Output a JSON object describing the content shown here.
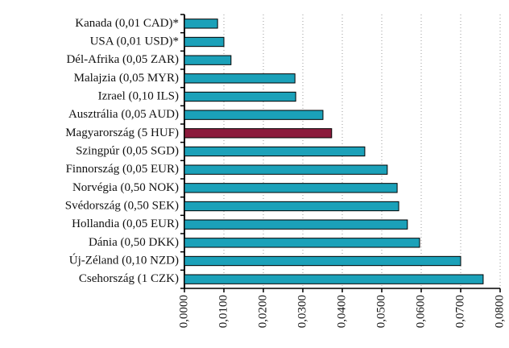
{
  "chart_data": {
    "type": "barh",
    "categories": [
      "Kanada (0,01 CAD)*",
      "USA (0,01 USD)*",
      "Dél-Afrika (0,05 ZAR)",
      "Malajzia (0,05 MYR)",
      "Izrael (0,10 ILS)",
      "Ausztrália (0,05 AUD)",
      "Magyarország (5 HUF)",
      "Szingpúr (0,05 SGD)",
      "Finnország (0,05 EUR)",
      "Norvégia (0,50 NOK)",
      "Svédország (0,50 SEK)",
      "Hollandia (0,05 EUR)",
      "Dánia (0,50 DKK)",
      "Új-Zéland (0,10 NZD)",
      "Csehország (1 CZK)"
    ],
    "values": [
      0.0084,
      0.01,
      0.0118,
      0.028,
      0.0282,
      0.0351,
      0.0373,
      0.0457,
      0.0514,
      0.0539,
      0.0543,
      0.0565,
      0.0596,
      0.07,
      0.0757
    ],
    "colors": [
      "#1ba1b9",
      "#1ba1b9",
      "#1ba1b9",
      "#1ba1b9",
      "#1ba1b9",
      "#1ba1b9",
      "#8c1b3c",
      "#1ba1b9",
      "#1ba1b9",
      "#1ba1b9",
      "#1ba1b9",
      "#1ba1b9",
      "#1ba1b9",
      "#1ba1b9",
      "#1ba1b9"
    ],
    "xlim": [
      0,
      0.08
    ],
    "xticks": [
      {
        "value": 0,
        "label": "0,0000"
      },
      {
        "value": 0.01,
        "label": "0,0100"
      },
      {
        "value": 0.02,
        "label": "0,0200"
      },
      {
        "value": 0.03,
        "label": "0,0300"
      },
      {
        "value": 0.04,
        "label": "0,0400"
      },
      {
        "value": 0.05,
        "label": "0,0500"
      },
      {
        "value": 0.06,
        "label": "0,0600"
      },
      {
        "value": 0.07,
        "label": "0,0700"
      },
      {
        "value": 0.08,
        "label": "0,0800"
      }
    ],
    "grid": true
  }
}
